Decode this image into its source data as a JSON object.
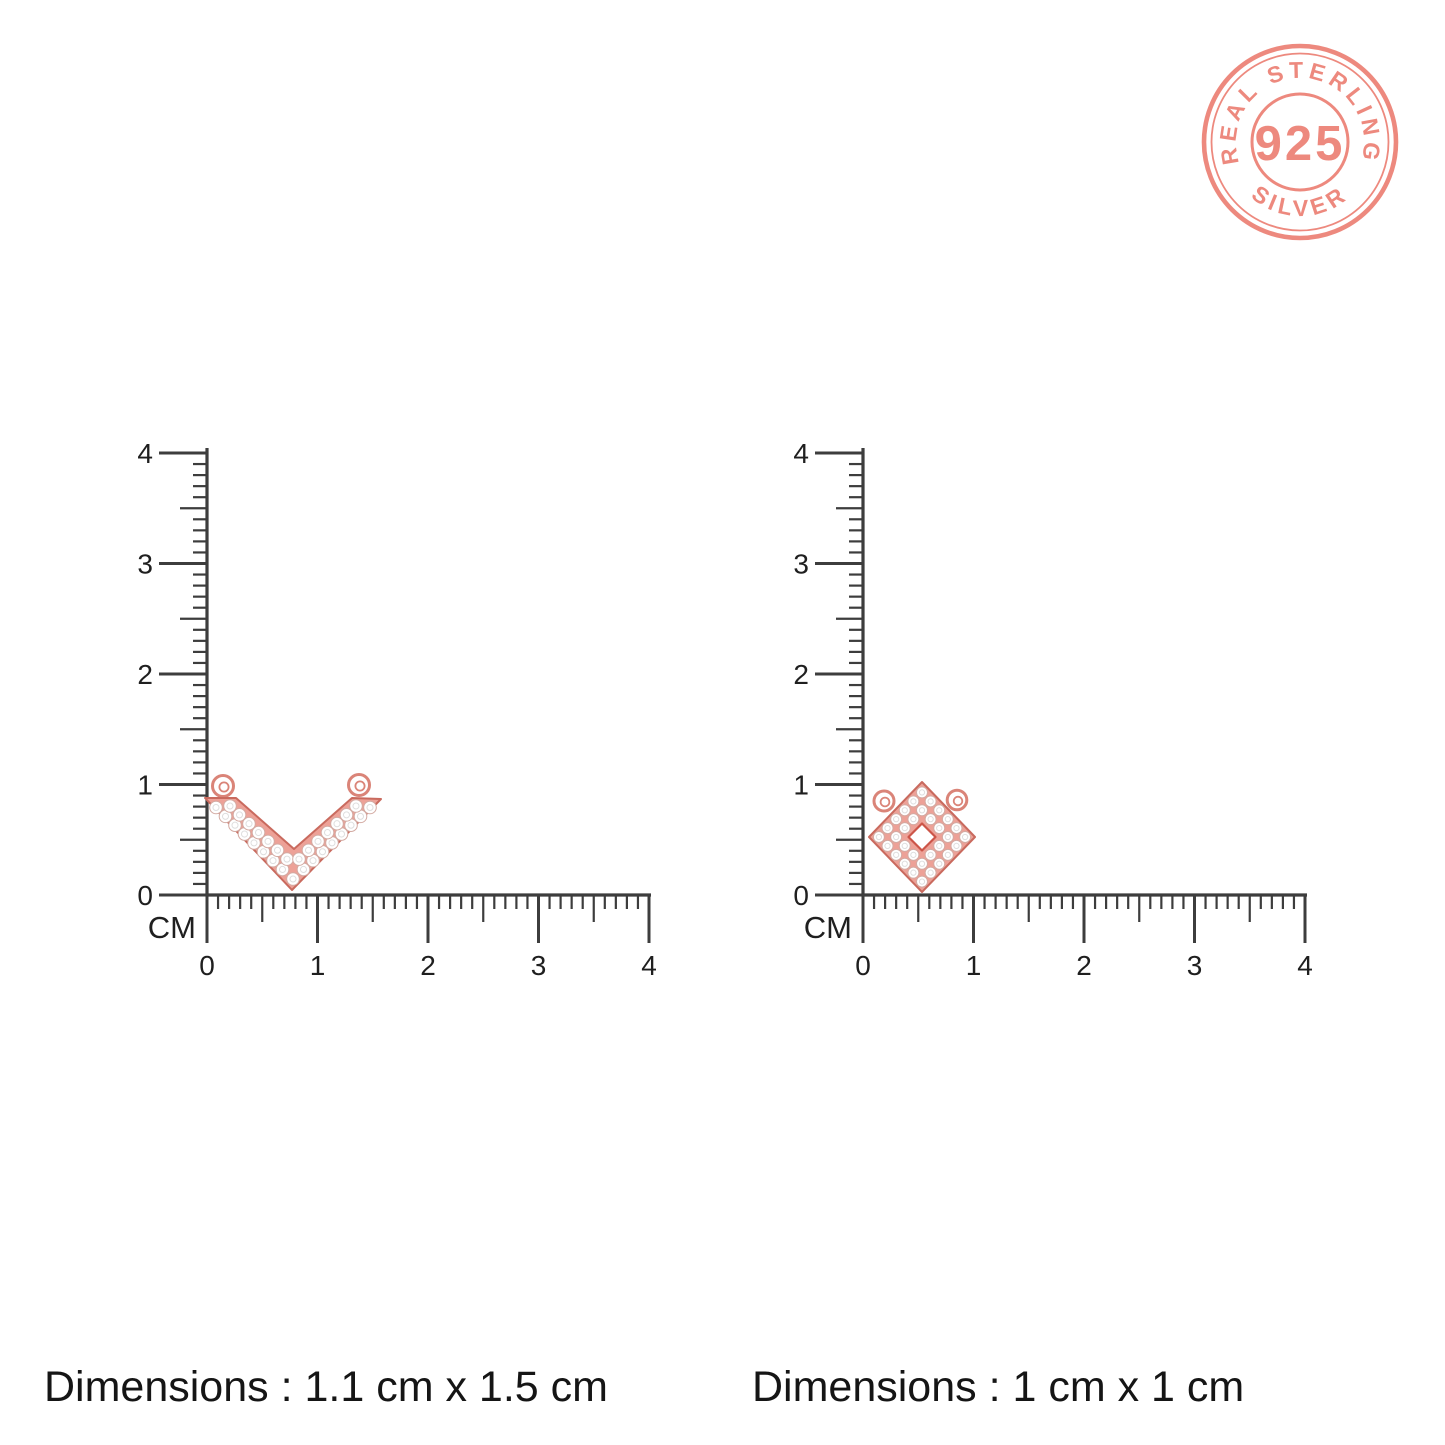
{
  "stamp": {
    "top_text": "REAL STERLING",
    "center_text": "925",
    "bottom_text": "SILVER",
    "color": "#ec8175"
  },
  "rulers": {
    "unit_label": "CM",
    "vertical_numbers": [
      "4",
      "3",
      "2",
      "1",
      "0"
    ],
    "horizontal_numbers": [
      "0",
      "1",
      "2",
      "3",
      "4"
    ]
  },
  "products": {
    "left": {
      "type": "rose-gold-pave-chevron-v-pendant",
      "dimensions_text": "Dimensions : 1.1 cm x 1.5 cm"
    },
    "right": {
      "type": "rose-gold-pave-diamond-square-pendant",
      "dimensions_text": "Dimensions : 1 cm x 1 cm"
    }
  },
  "colors": {
    "ruler_line": "#3d3d3d",
    "number_text": "#1f1f1f",
    "dimension_text": "#151515",
    "rose_gold_fill": "#eda197",
    "rose_gold_stroke": "#c96a5e",
    "stone_fill": "#ffffff",
    "stamp": "#ec8175"
  }
}
